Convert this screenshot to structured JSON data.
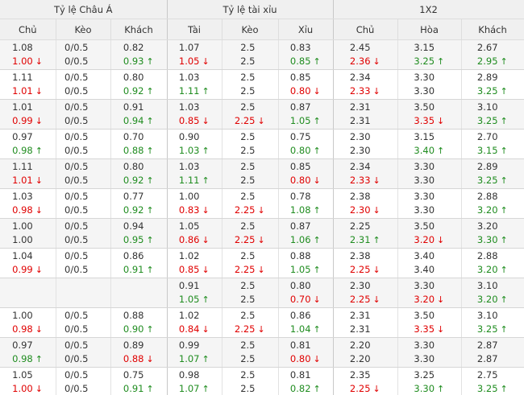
{
  "header": {
    "groups": [
      "Tỷ lệ Châu Á",
      "Tỷ lệ tài xỉu",
      "1X2"
    ],
    "columns": [
      "Chủ",
      "Kèo",
      "Khách",
      "Tài",
      "Kèo",
      "Xỉu",
      "Chủ",
      "Hòa",
      "Khách"
    ]
  },
  "table": {
    "rows": [
      [
        {
          "open": "1.08",
          "live": "1.00",
          "move": "down"
        },
        {
          "open": "0/0.5",
          "live": "0/0.5"
        },
        {
          "open": "0.82",
          "live": "0.93",
          "move": "up"
        },
        {
          "open": "1.07",
          "live": "1.05",
          "move": "down"
        },
        {
          "open": "2.5",
          "live": "2.5"
        },
        {
          "open": "0.83",
          "live": "0.85",
          "move": "up"
        },
        {
          "open": "2.45",
          "live": "2.36",
          "move": "down"
        },
        {
          "open": "3.15",
          "live": "3.25",
          "move": "up"
        },
        {
          "open": "2.67",
          "live": "2.95",
          "move": "up"
        }
      ],
      [
        {
          "open": "1.11",
          "live": "1.01",
          "move": "down"
        },
        {
          "open": "0/0.5",
          "live": "0/0.5"
        },
        {
          "open": "0.80",
          "live": "0.92",
          "move": "up"
        },
        {
          "open": "1.03",
          "live": "1.11",
          "move": "up"
        },
        {
          "open": "2.5",
          "live": "2.5"
        },
        {
          "open": "0.85",
          "live": "0.80",
          "move": "down"
        },
        {
          "open": "2.34",
          "live": "2.33",
          "move": "down"
        },
        {
          "open": "3.30",
          "live": "3.30"
        },
        {
          "open": "2.89",
          "live": "3.25",
          "move": "up"
        }
      ],
      [
        {
          "open": "1.01",
          "live": "0.99",
          "move": "down"
        },
        {
          "open": "0/0.5",
          "live": "0/0.5"
        },
        {
          "open": "0.91",
          "live": "0.94",
          "move": "up"
        },
        {
          "open": "1.03",
          "live": "0.85",
          "move": "down"
        },
        {
          "open": "2.5",
          "live": "2.25",
          "move": "down"
        },
        {
          "open": "0.87",
          "live": "1.05",
          "move": "up"
        },
        {
          "open": "2.31",
          "live": "2.31"
        },
        {
          "open": "3.50",
          "live": "3.35",
          "move": "down"
        },
        {
          "open": "3.10",
          "live": "3.25",
          "move": "up"
        }
      ],
      [
        {
          "open": "0.97",
          "live": "0.98",
          "move": "up"
        },
        {
          "open": "0/0.5",
          "live": "0/0.5"
        },
        {
          "open": "0.70",
          "live": "0.88",
          "move": "up"
        },
        {
          "open": "0.90",
          "live": "1.03",
          "move": "up"
        },
        {
          "open": "2.5",
          "live": "2.5"
        },
        {
          "open": "0.75",
          "live": "0.80",
          "move": "up"
        },
        {
          "open": "2.30",
          "live": "2.30"
        },
        {
          "open": "3.15",
          "live": "3.40",
          "move": "up"
        },
        {
          "open": "2.70",
          "live": "3.15",
          "move": "up"
        }
      ],
      [
        {
          "open": "1.11",
          "live": "1.01",
          "move": "down"
        },
        {
          "open": "0/0.5",
          "live": "0/0.5"
        },
        {
          "open": "0.80",
          "live": "0.92",
          "move": "up"
        },
        {
          "open": "1.03",
          "live": "1.11",
          "move": "up"
        },
        {
          "open": "2.5",
          "live": "2.5"
        },
        {
          "open": "0.85",
          "live": "0.80",
          "move": "down"
        },
        {
          "open": "2.34",
          "live": "2.33",
          "move": "down"
        },
        {
          "open": "3.30",
          "live": "3.30"
        },
        {
          "open": "2.89",
          "live": "3.25",
          "move": "up"
        }
      ],
      [
        {
          "open": "1.03",
          "live": "0.98",
          "move": "down"
        },
        {
          "open": "0/0.5",
          "live": "0/0.5"
        },
        {
          "open": "0.77",
          "live": "0.92",
          "move": "up"
        },
        {
          "open": "1.00",
          "live": "0.83",
          "move": "down"
        },
        {
          "open": "2.5",
          "live": "2.25",
          "move": "down"
        },
        {
          "open": "0.78",
          "live": "1.08",
          "move": "up"
        },
        {
          "open": "2.38",
          "live": "2.30",
          "move": "down"
        },
        {
          "open": "3.30",
          "live": "3.30"
        },
        {
          "open": "2.88",
          "live": "3.20",
          "move": "up"
        }
      ],
      [
        {
          "open": "1.00",
          "live": "1.00"
        },
        {
          "open": "0/0.5",
          "live": "0/0.5"
        },
        {
          "open": "0.94",
          "live": "0.95",
          "move": "up"
        },
        {
          "open": "1.05",
          "live": "0.86",
          "move": "down"
        },
        {
          "open": "2.5",
          "live": "2.25",
          "move": "down"
        },
        {
          "open": "0.87",
          "live": "1.06",
          "move": "up"
        },
        {
          "open": "2.25",
          "live": "2.31",
          "move": "up"
        },
        {
          "open": "3.50",
          "live": "3.20",
          "move": "down"
        },
        {
          "open": "3.20",
          "live": "3.30",
          "move": "up"
        }
      ],
      [
        {
          "open": "1.04",
          "live": "0.99",
          "move": "down"
        },
        {
          "open": "0/0.5",
          "live": "0/0.5"
        },
        {
          "open": "0.86",
          "live": "0.91",
          "move": "up"
        },
        {
          "open": "1.02",
          "live": "0.85",
          "move": "down"
        },
        {
          "open": "2.5",
          "live": "2.25",
          "move": "down"
        },
        {
          "open": "0.88",
          "live": "1.05",
          "move": "up"
        },
        {
          "open": "2.38",
          "live": "2.25",
          "move": "down"
        },
        {
          "open": "3.40",
          "live": "3.40"
        },
        {
          "open": "2.88",
          "live": "3.20",
          "move": "up"
        }
      ],
      [
        null,
        null,
        null,
        {
          "open": "0.91",
          "live": "1.05",
          "move": "up"
        },
        {
          "open": "2.5",
          "live": "2.5"
        },
        {
          "open": "0.80",
          "live": "0.70",
          "move": "down"
        },
        {
          "open": "2.30",
          "live": "2.25",
          "move": "down"
        },
        {
          "open": "3.30",
          "live": "3.20",
          "move": "down"
        },
        {
          "open": "3.10",
          "live": "3.20",
          "move": "up"
        }
      ],
      [
        {
          "open": "1.00",
          "live": "0.98",
          "move": "down"
        },
        {
          "open": "0/0.5",
          "live": "0/0.5"
        },
        {
          "open": "0.88",
          "live": "0.90",
          "move": "up"
        },
        {
          "open": "1.02",
          "live": "0.84",
          "move": "down"
        },
        {
          "open": "2.5",
          "live": "2.25",
          "move": "down"
        },
        {
          "open": "0.86",
          "live": "1.04",
          "move": "up"
        },
        {
          "open": "2.31",
          "live": "2.31"
        },
        {
          "open": "3.50",
          "live": "3.35",
          "move": "down"
        },
        {
          "open": "3.10",
          "live": "3.25",
          "move": "up"
        }
      ],
      [
        {
          "open": "0.97",
          "live": "0.98",
          "move": "up"
        },
        {
          "open": "0/0.5",
          "live": "0/0.5"
        },
        {
          "open": "0.89",
          "live": "0.88",
          "move": "down"
        },
        {
          "open": "0.99",
          "live": "1.07",
          "move": "up"
        },
        {
          "open": "2.5",
          "live": "2.5"
        },
        {
          "open": "0.81",
          "live": "0.80",
          "move": "down"
        },
        {
          "open": "2.20",
          "live": "2.20"
        },
        {
          "open": "3.30",
          "live": "3.30"
        },
        {
          "open": "2.87",
          "live": "2.87"
        }
      ],
      [
        {
          "open": "1.05",
          "live": "1.00",
          "move": "down"
        },
        {
          "open": "0/0.5",
          "live": "0/0.5"
        },
        {
          "open": "0.75",
          "live": "0.91",
          "move": "up"
        },
        {
          "open": "0.98",
          "live": "1.07",
          "move": "up"
        },
        {
          "open": "2.5",
          "live": "2.5"
        },
        {
          "open": "0.81",
          "live": "0.82",
          "move": "up"
        },
        {
          "open": "2.35",
          "live": "2.25",
          "move": "down"
        },
        {
          "open": "3.25",
          "live": "3.30",
          "move": "up"
        },
        {
          "open": "2.75",
          "live": "3.25",
          "move": "up"
        }
      ]
    ]
  }
}
